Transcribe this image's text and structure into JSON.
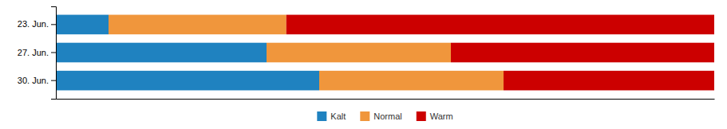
{
  "chart_data": {
    "type": "bar",
    "orientation": "horizontal",
    "stacked": true,
    "categories": [
      "23. Jun.",
      "27. Jun.",
      "30. Jun."
    ],
    "series": [
      {
        "name": "Kalt",
        "color": "#1f82c0",
        "values": [
          8,
          32,
          40
        ]
      },
      {
        "name": "Normal",
        "color": "#f0963c",
        "values": [
          27,
          28,
          28
        ]
      },
      {
        "name": "Warm",
        "color": "#cc0000",
        "values": [
          65,
          40,
          32
        ]
      }
    ],
    "xlim": [
      0,
      100
    ],
    "legend": "bottom",
    "tick_labels": "y"
  }
}
